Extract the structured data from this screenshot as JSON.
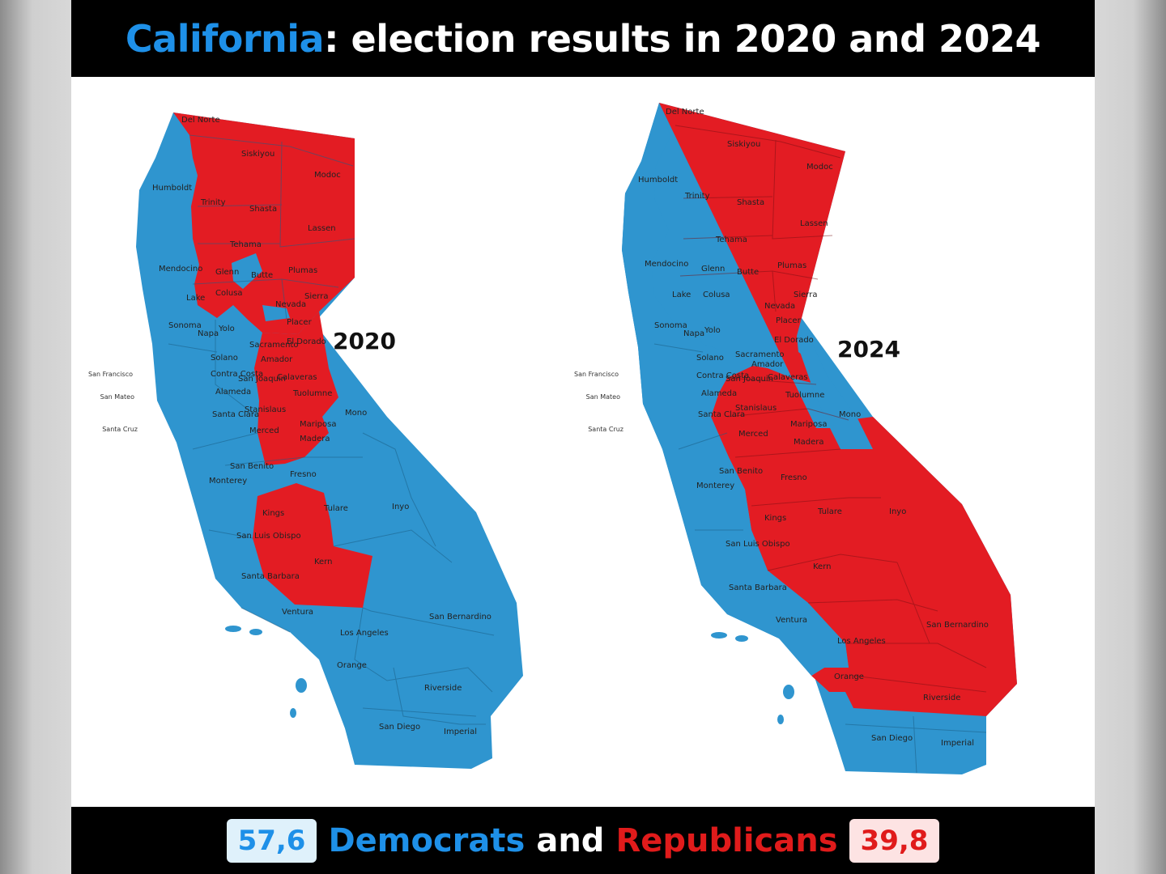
{
  "title": {
    "state": "California",
    "rest": ": election results in 2020 and 2024"
  },
  "colors": {
    "democrat": "#2f95cf",
    "republican": "#e31c23",
    "title_accent": "#1e90e8"
  },
  "maps": [
    {
      "year": "2020",
      "labels": [
        "Del Norte",
        "Siskiyou",
        "Modoc",
        "Humboldt",
        "Trinity",
        "Shasta",
        "Lassen",
        "Tehama",
        "Mendocino",
        "Glenn",
        "Butte",
        "Plumas",
        "Lake",
        "Colusa",
        "Sierra",
        "Nevada",
        "Placer",
        "Yolo",
        "El Dorado",
        "Sonoma",
        "Napa",
        "Solano",
        "Sacramento",
        "Amador",
        "Calaveras",
        "Tuolumne",
        "Mono",
        "San Joaquin",
        "Contra Costa",
        "Alameda",
        "Stanislaus",
        "Mariposa",
        "Madera",
        "Santa Clara",
        "Merced",
        "Fresno",
        "San Benito",
        "Monterey",
        "Kings",
        "Tulare",
        "Inyo",
        "Kern",
        "San Luis Obispo",
        "Santa Barbara",
        "Ventura",
        "Los Angeles",
        "San Bernardino",
        "Orange",
        "Riverside",
        "San Diego",
        "Imperial"
      ]
    },
    {
      "year": "2024",
      "labels": [
        "Del Norte",
        "Siskiyou",
        "Modoc",
        "Humboldt",
        "Trinity",
        "Shasta",
        "Lassen",
        "Tehama",
        "Mendocino",
        "Glenn",
        "Butte",
        "Plumas",
        "Lake",
        "Colusa",
        "Sierra",
        "Nevada",
        "Placer",
        "Yolo",
        "El Dorado",
        "Sonoma",
        "Napa",
        "Solano",
        "Sacramento",
        "Amador",
        "Calaveras",
        "Tuolumne",
        "Mono",
        "San Joaquin",
        "Contra Costa",
        "Alameda",
        "Stanislaus",
        "Mariposa",
        "Madera",
        "Santa Clara",
        "Merced",
        "Fresno",
        "San Benito",
        "Monterey",
        "Kings",
        "Tulare",
        "Inyo",
        "Kern",
        "San Luis Obispo",
        "Santa Barbara",
        "Ventura",
        "Los Angeles",
        "San Bernardino",
        "Orange",
        "Riverside",
        "San Diego",
        "Imperial"
      ]
    }
  ],
  "coastal_labels": [
    "San Francisco",
    "San Mateo",
    "Santa Cruz"
  ],
  "results": {
    "dem_value": "57,6",
    "dem_label": "Democrats",
    "and": "and",
    "rep_label": "Republicans",
    "rep_value": "39,8"
  }
}
